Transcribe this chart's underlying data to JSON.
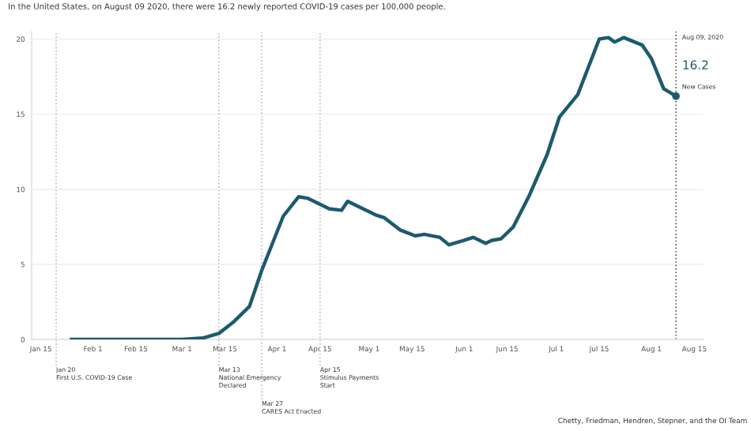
{
  "chart_data": {
    "type": "line",
    "title": "In the United States, on August 09 2020, there were 16.2 newly reported COVID-19 cases per 100,000 people.",
    "x": [
      "2020-01-25",
      "2020-02-15",
      "2020-03-01",
      "2020-03-08",
      "2020-03-13",
      "2020-03-18",
      "2020-03-23",
      "2020-03-27",
      "2020-04-03",
      "2020-04-08",
      "2020-04-11",
      "2020-04-18",
      "2020-04-22",
      "2020-04-24",
      "2020-05-03",
      "2020-05-06",
      "2020-05-11",
      "2020-05-16",
      "2020-05-19",
      "2020-05-24",
      "2020-05-27",
      "2020-06-01",
      "2020-06-04",
      "2020-06-08",
      "2020-06-10",
      "2020-06-13",
      "2020-06-17",
      "2020-06-22",
      "2020-06-28",
      "2020-07-02",
      "2020-07-08",
      "2020-07-15",
      "2020-07-18",
      "2020-07-20",
      "2020-07-22",
      "2020-07-23",
      "2020-07-29",
      "2020-08-01",
      "2020-08-05",
      "2020-08-09"
    ],
    "series": [
      {
        "color": "#1d5a6e",
        "values": [
          0,
          0,
          0,
          0.1,
          0.4,
          1.2,
          2.2,
          4.6,
          8.2,
          9.5,
          9.4,
          8.7,
          8.6,
          9.2,
          8.3,
          8.1,
          7.3,
          6.9,
          7.0,
          6.8,
          6.3,
          6.6,
          6.8,
          6.4,
          6.6,
          6.7,
          7.5,
          9.5,
          12.3,
          14.8,
          16.3,
          20.0,
          20.1,
          19.8,
          20.0,
          20.1,
          19.6,
          18.7,
          16.7,
          16.2
        ]
      }
    ],
    "xlim": [
      "2020-01-12",
      "2020-08-18"
    ],
    "xticks": [
      {
        "value": "2020-01-15",
        "label": "Jan 15"
      },
      {
        "value": "2020-02-01",
        "label": "Feb 1"
      },
      {
        "value": "2020-02-15",
        "label": "Feb 15"
      },
      {
        "value": "2020-03-01",
        "label": "Mar 1"
      },
      {
        "value": "2020-03-15",
        "label": "Mar 15"
      },
      {
        "value": "2020-04-01",
        "label": "Apr 1"
      },
      {
        "value": "2020-04-15",
        "label": "Apr 15"
      },
      {
        "value": "2020-05-01",
        "label": "May 1"
      },
      {
        "value": "2020-05-15",
        "label": "May 15"
      },
      {
        "value": "2020-06-01",
        "label": "Jun 1"
      },
      {
        "value": "2020-06-15",
        "label": "Jun 15"
      },
      {
        "value": "2020-07-01",
        "label": "Jul 1"
      },
      {
        "value": "2020-07-15",
        "label": "Jul 15"
      },
      {
        "value": "2020-08-01",
        "label": "Aug 1"
      },
      {
        "value": "2020-08-15",
        "label": "Aug 15"
      }
    ],
    "ylim": [
      0,
      20.5
    ],
    "yticks": [
      0,
      5,
      10,
      15,
      20
    ],
    "grid": "y",
    "marker": "none",
    "line_style": "solid",
    "ref_lines": [
      {
        "axis": "x",
        "value": "2020-01-20",
        "label": "Jan 20\nFirst U.S. COVID-19 Case",
        "line_style": "dotted",
        "color": "#bbbbbb"
      },
      {
        "axis": "x",
        "value": "2020-03-13",
        "label": "Mar 13\nNational Emergency\nDeclared",
        "line_style": "dotted",
        "color": "#bbbbbb"
      },
      {
        "axis": "x",
        "value": "2020-03-27",
        "label": "Mar 27\nCARES Act Enacted",
        "line_style": "dotted",
        "color": "#bbbbbb"
      },
      {
        "axis": "x",
        "value": "2020-04-15",
        "label": "Apr 15\nStimulus Payments\nStart",
        "line_style": "dotted",
        "color": "#bbbbbb"
      },
      {
        "axis": "x",
        "value": "2020-08-09",
        "label": "Aug 09, 2020",
        "line_style": "dotted",
        "color": "#555555"
      }
    ],
    "annotations": [
      {
        "text": "16.2",
        "x": "2020-08-09",
        "y": 16.2
      },
      "New Cases",
      "Chetty, Friedman, Hendren, Stepner, and the OI Team"
    ]
  }
}
